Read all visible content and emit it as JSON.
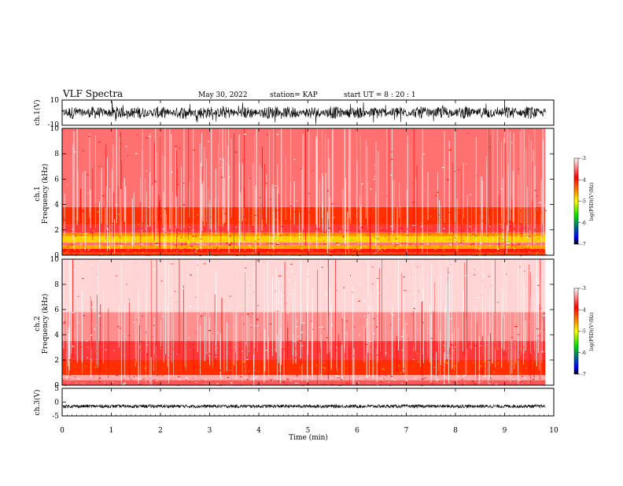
{
  "header": {
    "title": "VLF Spectra",
    "date": "May 30, 2022",
    "station": "station= KAP",
    "start": "start  UT =   8  : 20 : 1"
  },
  "colors": {
    "white": "#ffffff",
    "red": "#ff0000",
    "orange": "#ff8c00",
    "yellow": "#ffff00",
    "green": "#00e000",
    "blue": "#0000ff",
    "black": "#000000"
  },
  "chart_data": [
    {
      "type": "line",
      "panel": "ch1-waveform",
      "ylabel": "ch.1(V)",
      "ylim": [
        -10,
        10
      ],
      "yticks": [
        "10",
        "-10"
      ],
      "xlim": [
        0,
        10
      ],
      "amplitude_envelope": {
        "mean": 2,
        "peak": 10
      }
    },
    {
      "type": "heatmap",
      "panel": "ch1-spectrogram",
      "ylabel": "ch.1\nFrequency (kHz)",
      "ylim": [
        0,
        10
      ],
      "yticks": [
        "0",
        "2",
        "4",
        "6",
        "8",
        "10"
      ],
      "xlim": [
        0,
        10
      ],
      "data_end_min": 9.83,
      "colorbar": {
        "label": "log(PSD)(V²/Hz)",
        "range": [
          -7,
          -3
        ],
        "ticks": [
          "-3",
          "-4",
          "-5",
          "-6",
          "-7"
        ]
      },
      "bands": [
        {
          "f0": 0.0,
          "f1": 0.2,
          "level": -4.2
        },
        {
          "f0": 0.2,
          "f1": 0.5,
          "level": -4.0
        },
        {
          "f0": 0.5,
          "f1": 0.8,
          "level": -4.6
        },
        {
          "f0": 0.8,
          "f1": 1.0,
          "level": -3.5
        },
        {
          "f0": 1.0,
          "f1": 1.5,
          "level": -4.8
        },
        {
          "f0": 1.5,
          "f1": 1.8,
          "level": -4.5
        },
        {
          "f0": 1.8,
          "f1": 2.4,
          "level": -3.7
        },
        {
          "f0": 2.4,
          "f1": 3.8,
          "level": -4.1
        },
        {
          "f0": 3.8,
          "f1": 10.0,
          "level": -3.5
        }
      ]
    },
    {
      "type": "heatmap",
      "panel": "ch2-spectrogram",
      "ylabel": "ch.2\nFrequency (kHz)",
      "ylim": [
        0,
        10
      ],
      "yticks": [
        "0",
        "2",
        "4",
        "6",
        "8",
        "10"
      ],
      "xlim": [
        0,
        10
      ],
      "data_end_min": 9.83,
      "colorbar": {
        "label": "log(PSD)(V²/Hz)",
        "range": [
          -7,
          -3
        ],
        "ticks": [
          "-3",
          "-4",
          "-5",
          "-6",
          "-7"
        ]
      },
      "bands": [
        {
          "f0": 0.0,
          "f1": 0.4,
          "level": -3.6
        },
        {
          "f0": 0.4,
          "f1": 0.8,
          "level": -3.3
        },
        {
          "f0": 0.8,
          "f1": 2.0,
          "level": -4.1
        },
        {
          "f0": 2.0,
          "f1": 3.5,
          "level": -3.7
        },
        {
          "f0": 3.5,
          "f1": 5.8,
          "level": -3.4
        },
        {
          "f0": 5.8,
          "f1": 10.0,
          "level": -3.15
        }
      ]
    },
    {
      "type": "line",
      "panel": "ch3-waveform",
      "ylabel": "ch.3(V)",
      "ylim": [
        -5,
        5
      ],
      "yticks": [
        "5",
        "0",
        "-5"
      ],
      "xlim": [
        0,
        10
      ],
      "xlabel": "Time (min)",
      "xticks": [
        "0",
        "1",
        "2",
        "3",
        "4",
        "5",
        "6",
        "7",
        "8",
        "9",
        "10"
      ],
      "trace_center": -1.5,
      "trace_halfwidth": 0.6
    }
  ]
}
